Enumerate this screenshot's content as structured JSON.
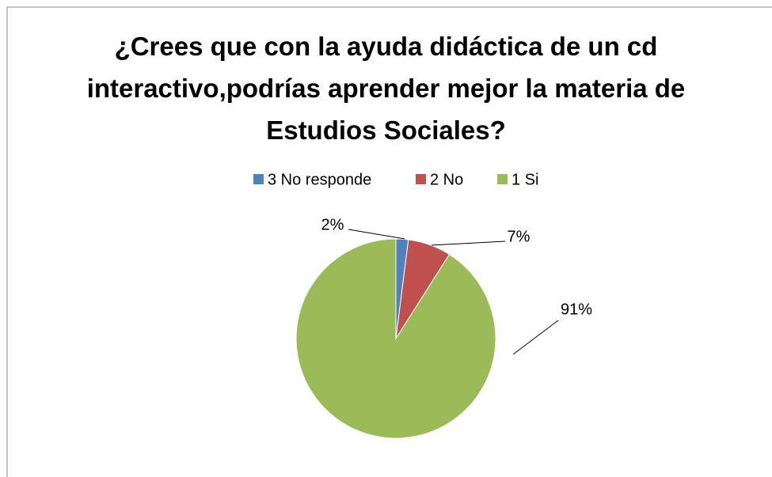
{
  "chart_data": {
    "type": "pie",
    "title": "¿Crees que con la ayuda didáctica de un cd interactivo,podrías aprender mejor la materia de Estudios Sociales?",
    "categories": [
      "3 No responde",
      "2 No",
      "1 Si"
    ],
    "values": [
      2,
      7,
      91
    ],
    "value_labels": [
      "2%",
      "7%",
      "91%"
    ],
    "colors": [
      "#4f81bd",
      "#c0504d",
      "#9bbb59"
    ],
    "legend": "top"
  }
}
